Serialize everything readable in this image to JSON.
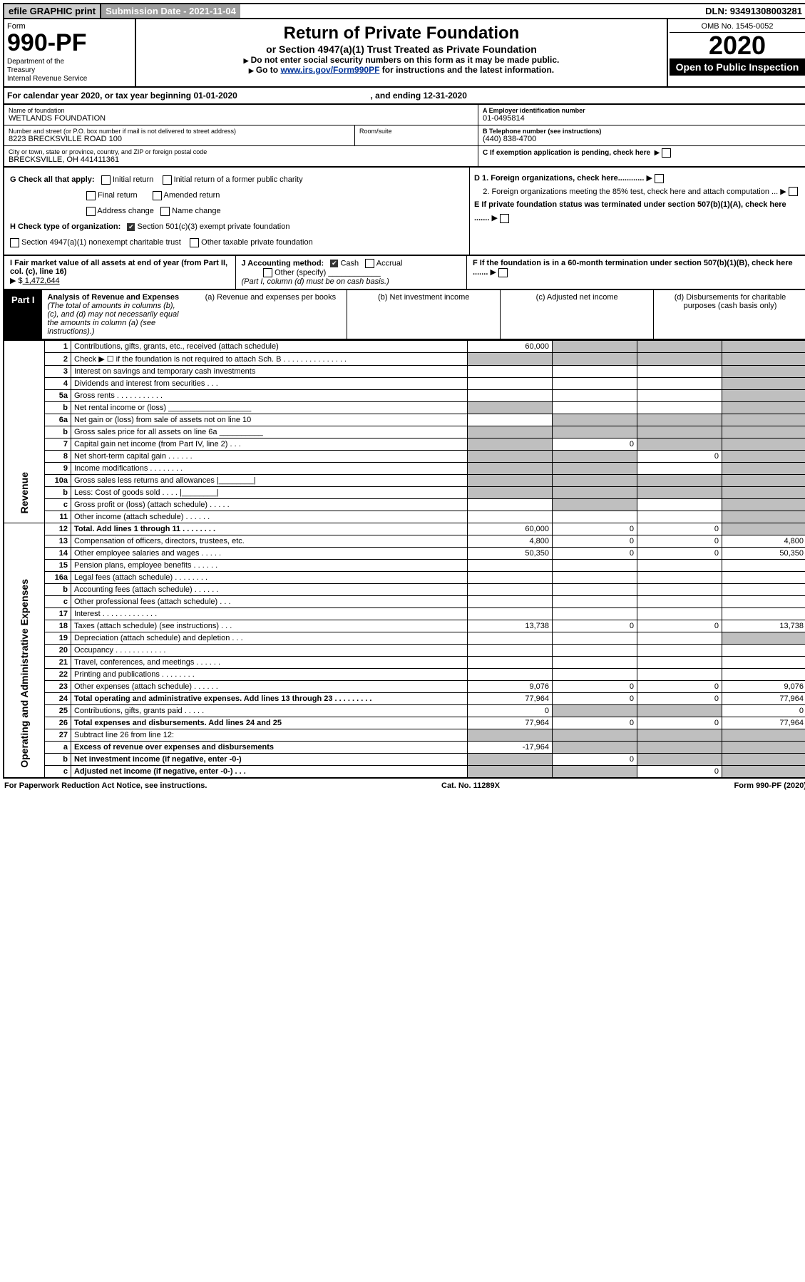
{
  "topbar": {
    "efile": "efile GRAPHIC print",
    "subdate_label": "Submission Date - 2021-11-04",
    "dln": "DLN: 93491308003281"
  },
  "header": {
    "form_word": "Form",
    "form_num": "990-PF",
    "dept1": "Department of the",
    "dept2": "Treasury",
    "dept3": "Internal Revenue Service",
    "title": "Return of Private Foundation",
    "subtitle": "or Section 4947(a)(1) Trust Treated as Private Foundation",
    "instr1": "Do not enter social security numbers on this form as it may be made public.",
    "instr2_pre": "Go to ",
    "instr2_link": "www.irs.gov/Form990PF",
    "instr2_post": " for instructions and the latest information.",
    "omb": "OMB No. 1545-0052",
    "year": "2020",
    "open_public": "Open to Public Inspection"
  },
  "calyear": {
    "pre": "For calendar year 2020, or tax year beginning 01-01-2020",
    "mid": ", and ending 12-31-2020"
  },
  "identity": {
    "name_label": "Name of foundation",
    "name": "WETLANDS FOUNDATION",
    "addr_label": "Number and street (or P.O. box number if mail is not delivered to street address)",
    "addr": "8223 BRECKSVILLE ROAD 100",
    "room_label": "Room/suite",
    "city_label": "City or town, state or province, country, and ZIP or foreign postal code",
    "city": "BRECKSVILLE, OH  441411361",
    "A_label": "A Employer identification number",
    "A": "01-0495814",
    "B_label": "B Telephone number (see instructions)",
    "B": "(440) 838-4700",
    "C_label": "C If exemption application is pending, check here"
  },
  "G": {
    "label": "G Check all that apply:",
    "initial": "Initial return",
    "initial_pub": "Initial return of a former public charity",
    "final": "Final return",
    "amended": "Amended return",
    "addr": "Address change",
    "name": "Name change"
  },
  "H": {
    "label": "H Check type of organization:",
    "s501": "Section 501(c)(3) exempt private foundation",
    "s4947": "Section 4947(a)(1) nonexempt charitable trust",
    "other": "Other taxable private foundation"
  },
  "D": {
    "d1": "D 1. Foreign organizations, check here............",
    "d2": "2. Foreign organizations meeting the 85% test, check here and attach computation ..."
  },
  "E": {
    "text": "E  If private foundation status was terminated under section 507(b)(1)(A), check here ......."
  },
  "I": {
    "label": "I Fair market value of all assets at end of year (from Part II, col. (c), line 16)",
    "arrow": "▶ $",
    "value": "  1,472,644"
  },
  "J": {
    "label": "J Accounting method:",
    "cash": "Cash",
    "accrual": "Accrual",
    "other": "Other (specify)",
    "note": "(Part I, column (d) must be on cash basis.)"
  },
  "F": {
    "text": "F  If the foundation is in a 60-month termination under section 507(b)(1)(B), check here ......."
  },
  "part1": {
    "tag": "Part I",
    "title": "Analysis of Revenue and Expenses",
    "note": "(The total of amounts in columns (b), (c), and (d) may not necessarily equal the amounts in column (a) (see instructions).)"
  },
  "cols": {
    "a": "(a)    Revenue and expenses per books",
    "b": "(b)    Net investment income",
    "c": "(c)    Adjusted net income",
    "d": "(d)    Disbursements for charitable purposes (cash basis only)"
  },
  "side": {
    "rev": "Revenue",
    "oae": "Operating and Administrative Expenses"
  },
  "rows": [
    {
      "n": "1",
      "d": "Contributions, gifts, grants, etc., received (attach schedule)",
      "a": "60,000",
      "bgrey": true,
      "cgrey": true,
      "dgrey": true
    },
    {
      "n": "2",
      "d": "Check ▶ ☐ if the foundation is not required to attach Sch. B   .   .   .   .   .   .   .   .   .   .   .   .   .   .   .",
      "agrey": true,
      "bgrey": true,
      "cgrey": true,
      "dgrey": true
    },
    {
      "n": "3",
      "d": "Interest on savings and temporary cash investments",
      "dgrey": true
    },
    {
      "n": "4",
      "d": "Dividends and interest from securities    .    .    .",
      "dgrey": true
    },
    {
      "n": "5a",
      "d": "Gross rents    .    .    .    .    .    .    .    .    .    .    .",
      "dgrey": true
    },
    {
      "n": "b",
      "d": "Net rental income or (loss)  ___________________",
      "agrey": true,
      "dgrey": true
    },
    {
      "n": "6a",
      "d": "Net gain or (loss) from sale of assets not on line 10",
      "bgrey": true,
      "cgrey": true,
      "dgrey": true
    },
    {
      "n": "b",
      "d": "Gross sales price for all assets on line 6a __________",
      "agrey": true,
      "bgrey": true,
      "cgrey": true,
      "dgrey": true
    },
    {
      "n": "7",
      "d": "Capital gain net income (from Part IV, line 2)    .    .    .",
      "agrey": true,
      "b": "0",
      "cgrey": true,
      "dgrey": true
    },
    {
      "n": "8",
      "d": "Net short-term capital gain   .    .    .    .    .    .",
      "agrey": true,
      "bgrey": true,
      "c": "0",
      "dgrey": true
    },
    {
      "n": "9",
      "d": "Income modifications  .    .    .    .    .    .    .    .",
      "agrey": true,
      "bgrey": true,
      "dgrey": true
    },
    {
      "n": "10a",
      "d": "Gross sales less returns and allowances   |________|",
      "agrey": true,
      "bgrey": true,
      "cgrey": true,
      "dgrey": true
    },
    {
      "n": "b",
      "d": "Less: Cost of goods sold     .    .    .    .    |________|",
      "agrey": true,
      "bgrey": true,
      "cgrey": true,
      "dgrey": true
    },
    {
      "n": "c",
      "d": "Gross profit or (loss) (attach schedule)    .    .    .    .    .",
      "bgrey": true,
      "dgrey": true
    },
    {
      "n": "11",
      "d": "Other income (attach schedule)    .    .    .    .    .    .",
      "dgrey": true
    },
    {
      "n": "12",
      "d": "Total. Add lines 1 through 11   .    .    .    .    .    .    .    .",
      "bold": true,
      "a": "60,000",
      "b": "0",
      "c": "0",
      "dgrey": true
    },
    {
      "n": "13",
      "d": "Compensation of officers, directors, trustees, etc.",
      "a": "4,800",
      "b": "0",
      "c": "0",
      "dd": "4,800"
    },
    {
      "n": "14",
      "d": "Other employee salaries and wages    .    .    .    .    .",
      "a": "50,350",
      "b": "0",
      "c": "0",
      "dd": "50,350"
    },
    {
      "n": "15",
      "d": "Pension plans, employee benefits   .    .    .    .    .    ."
    },
    {
      "n": "16a",
      "d": "Legal fees (attach schedule)  .    .    .    .    .    .    .    ."
    },
    {
      "n": "b",
      "d": "Accounting fees (attach schedule)  .    .    .    .    .    .  "
    },
    {
      "n": "c",
      "d": "Other professional fees (attach schedule)    .    .    ."
    },
    {
      "n": "17",
      "d": "Interest  .    .    .    .    .    .    .    .    .    .    .    .    ."
    },
    {
      "n": "18",
      "d": "Taxes (attach schedule) (see instructions)     .    .    .",
      "a": "13,738",
      "b": "0",
      "c": "0",
      "dd": "13,738"
    },
    {
      "n": "19",
      "d": "Depreciation (attach schedule) and depletion    .    .    .",
      "dgrey": true
    },
    {
      "n": "20",
      "d": "Occupancy  .    .    .    .    .    .    .    .    .    .    .    ."
    },
    {
      "n": "21",
      "d": "Travel, conferences, and meetings  .    .    .    .    .    ."
    },
    {
      "n": "22",
      "d": "Printing and publications  .    .    .    .    .    .    .    .  "
    },
    {
      "n": "23",
      "d": "Other expenses (attach schedule)  .    .    .    .    .    .",
      "a": "9,076",
      "b": "0",
      "c": "0",
      "dd": "9,076"
    },
    {
      "n": "24",
      "d": "Total operating and administrative expenses. Add lines 13 through 23   .    .    .    .    .    .    .    .    .",
      "bold": true,
      "a": "77,964",
      "b": "0",
      "c": "0",
      "dd": "77,964"
    },
    {
      "n": "25",
      "d": "Contributions, gifts, grants paid     .    .    .    .    .",
      "a": "0",
      "bgrey": true,
      "cgrey": true,
      "dd": "0"
    },
    {
      "n": "26",
      "d": "Total expenses and disbursements. Add lines 24 and 25",
      "bold": true,
      "a": "77,964",
      "b": "0",
      "c": "0",
      "dd": "77,964"
    },
    {
      "n": "27",
      "d": "Subtract line 26 from line 12:",
      "agrey": true,
      "bgrey": true,
      "cgrey": true,
      "dgrey": true
    },
    {
      "n": "a",
      "d": "Excess of revenue over expenses and disbursements",
      "bold": true,
      "a": "-17,964",
      "bgrey": true,
      "cgrey": true,
      "dgrey": true
    },
    {
      "n": "b",
      "d": "Net investment income (if negative, enter -0-)",
      "bold": true,
      "agrey": true,
      "b": "0",
      "cgrey": true,
      "dgrey": true
    },
    {
      "n": "c",
      "d": "Adjusted net income (if negative, enter -0-)    .    .    .",
      "bold": true,
      "agrey": true,
      "bgrey": true,
      "c": "0",
      "dgrey": true
    }
  ],
  "footer": {
    "left": "For Paperwork Reduction Act Notice, see instructions.",
    "mid": "Cat. No. 11289X",
    "right": "Form 990-PF (2020)"
  }
}
